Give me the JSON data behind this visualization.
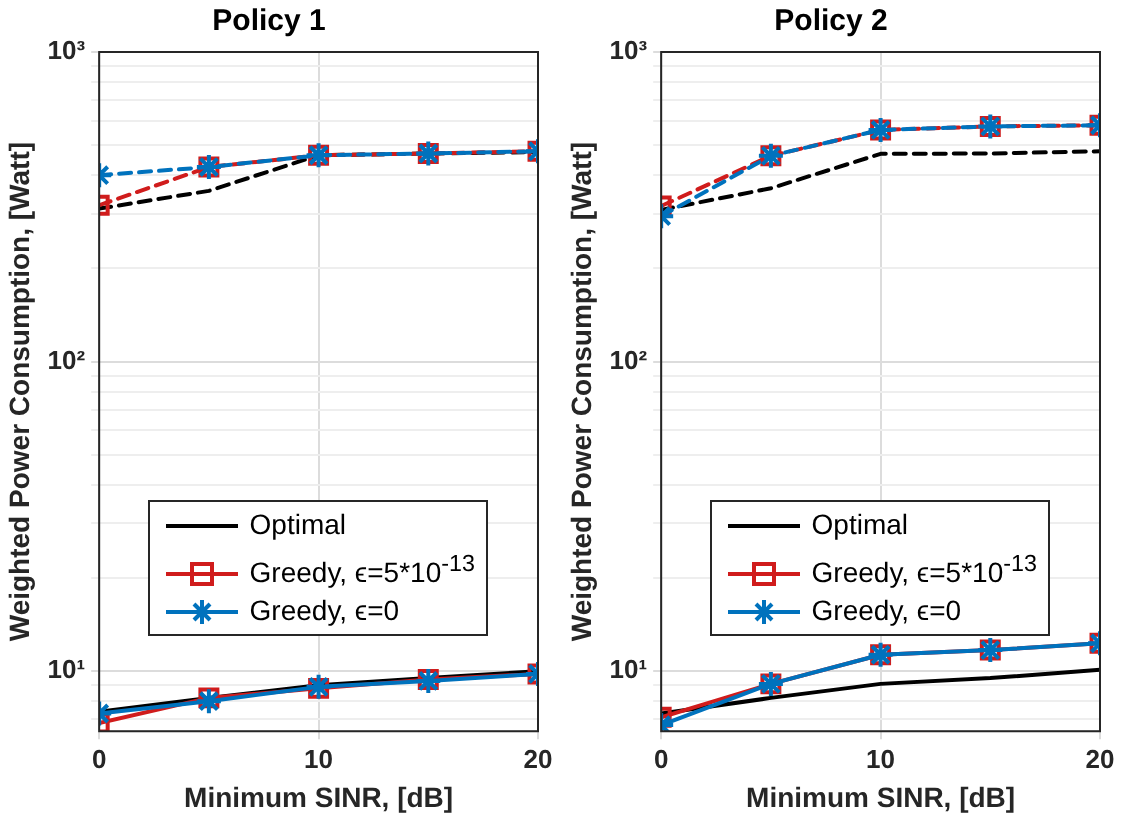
{
  "chart_data": [
    {
      "type": "line",
      "title": "Policy 1",
      "xlabel": "Minimum SINR, [dB]",
      "ylabel": "Weighted Power Consumption, [Watt]",
      "x": [
        0,
        5,
        10,
        15,
        20
      ],
      "xlim": [
        0,
        20
      ],
      "xticks": [
        0,
        10,
        20
      ],
      "ylim": [
        6.4,
        1000
      ],
      "log": "y",
      "grid": true,
      "legend": "bottom",
      "yticks": [
        {
          "value": 7,
          "label": null
        },
        {
          "value": 8,
          "label": null
        },
        {
          "value": 9,
          "label": null
        },
        {
          "value": 10,
          "label": "10¹"
        },
        {
          "value": 20,
          "label": null
        },
        {
          "value": 30,
          "label": null
        },
        {
          "value": 40,
          "label": null
        },
        {
          "value": 50,
          "label": null
        },
        {
          "value": 60,
          "label": null
        },
        {
          "value": 70,
          "label": null
        },
        {
          "value": 80,
          "label": null
        },
        {
          "value": 90,
          "label": null
        },
        {
          "value": 100,
          "label": "10²"
        },
        {
          "value": 200,
          "label": null
        },
        {
          "value": 300,
          "label": null
        },
        {
          "value": 400,
          "label": null
        },
        {
          "value": 500,
          "label": null
        },
        {
          "value": 600,
          "label": null
        },
        {
          "value": 700,
          "label": null
        },
        {
          "value": 800,
          "label": null
        },
        {
          "value": 900,
          "label": null
        },
        {
          "value": 1000,
          "label": "10³"
        }
      ],
      "series": [
        {
          "name": "Optimal",
          "color": "#000000",
          "values": [
            7.4,
            8.2,
            9.0,
            9.5,
            10.0
          ],
          "line_style": "solid",
          "marker": "none"
        },
        {
          "name": "Greedy, ϵ=5*10$^{-13}$",
          "color": "#d01c1c",
          "values": [
            6.8,
            8.2,
            8.8,
            9.4,
            9.8
          ],
          "line_style": "solid",
          "marker": "square"
        },
        {
          "name": "Greedy, ϵ=0",
          "color": "#0072bd",
          "values": [
            7.3,
            8.0,
            8.9,
            9.3,
            9.8
          ],
          "line_style": "solid",
          "marker": "cross"
        },
        {
          "color": "#000000",
          "values": [
            312,
            356,
            464,
            470,
            475
          ],
          "line_style": "dashed",
          "marker": "none"
        },
        {
          "color": "#d01c1c",
          "values": [
            320,
            425,
            464,
            470,
            478
          ],
          "line_style": "dashed",
          "marker": "square"
        },
        {
          "color": "#0072bd",
          "values": [
            400,
            425,
            464,
            470,
            478
          ],
          "line_style": "dashed",
          "marker": "cross"
        }
      ]
    },
    {
      "type": "line",
      "title": "Policy 2",
      "xlabel": "Minimum SINR, [dB]",
      "ylabel": "Weighted Power Consumption, [Watt]",
      "x": [
        0,
        5,
        10,
        15,
        20
      ],
      "xlim": [
        0,
        20
      ],
      "xticks": [
        0,
        10,
        20
      ],
      "ylim": [
        6.4,
        1000
      ],
      "log": "y",
      "grid": true,
      "legend": "bottom",
      "yticks": [
        {
          "value": 7,
          "label": null
        },
        {
          "value": 8,
          "label": null
        },
        {
          "value": 9,
          "label": null
        },
        {
          "value": 10,
          "label": "10¹"
        },
        {
          "value": 20,
          "label": null
        },
        {
          "value": 30,
          "label": null
        },
        {
          "value": 40,
          "label": null
        },
        {
          "value": 50,
          "label": null
        },
        {
          "value": 60,
          "label": null
        },
        {
          "value": 70,
          "label": null
        },
        {
          "value": 80,
          "label": null
        },
        {
          "value": 90,
          "label": null
        },
        {
          "value": 100,
          "label": "10²"
        },
        {
          "value": 200,
          "label": null
        },
        {
          "value": 300,
          "label": null
        },
        {
          "value": 400,
          "label": null
        },
        {
          "value": 500,
          "label": null
        },
        {
          "value": 600,
          "label": null
        },
        {
          "value": 700,
          "label": null
        },
        {
          "value": 800,
          "label": null
        },
        {
          "value": 900,
          "label": null
        },
        {
          "value": 1000,
          "label": "10³"
        }
      ],
      "series": [
        {
          "name": "Optimal",
          "color": "#000000",
          "values": [
            7.3,
            8.2,
            9.1,
            9.5,
            10.1
          ],
          "line_style": "solid",
          "marker": "none"
        },
        {
          "name": "Greedy, ϵ=5*10$^{-13}$",
          "color": "#d01c1c",
          "values": [
            7.1,
            9.1,
            11.3,
            11.7,
            12.3
          ],
          "line_style": "solid",
          "marker": "square"
        },
        {
          "name": "Greedy, ϵ=0",
          "color": "#0072bd",
          "values": [
            6.7,
            9.1,
            11.3,
            11.7,
            12.3
          ],
          "line_style": "solid",
          "marker": "cross"
        },
        {
          "color": "#000000",
          "values": [
            309,
            363,
            469,
            470,
            478
          ],
          "line_style": "dashed",
          "marker": "none"
        },
        {
          "color": "#d01c1c",
          "values": [
            318,
            462,
            560,
            575,
            580
          ],
          "line_style": "dashed",
          "marker": "square"
        },
        {
          "color": "#0072bd",
          "values": [
            295,
            462,
            560,
            575,
            580
          ],
          "line_style": "dashed",
          "marker": "cross"
        }
      ]
    }
  ]
}
